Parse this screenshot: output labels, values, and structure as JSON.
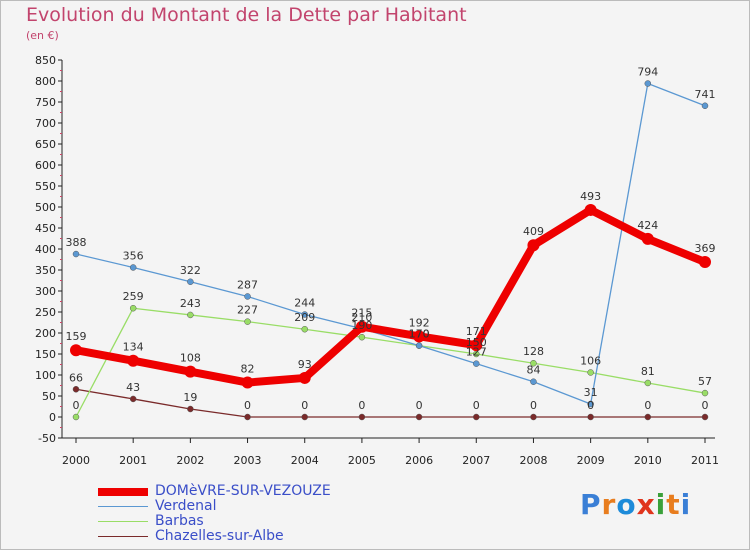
{
  "header": {
    "title": "Evolution du Montant de la Dette par Habitant",
    "subtitle": "(en €)"
  },
  "brand": {
    "text": "Proxiti",
    "colors": [
      "#3a7fd6",
      "#e87d1e",
      "#1d8bd9",
      "#e0341c",
      "#3aa03a",
      "#e87d1e",
      "#3a7fd6"
    ]
  },
  "chart_data": {
    "type": "line",
    "title": "Evolution du Montant de la Dette par Habitant",
    "subtitle": "(en €)",
    "xlabel": "",
    "ylabel": "",
    "x": [
      "2000",
      "2001",
      "2002",
      "2003",
      "2004",
      "2005",
      "2006",
      "2007",
      "2008",
      "2009",
      "2010",
      "2011"
    ],
    "ylim": [
      -50,
      850
    ],
    "yticks": [
      -50,
      0,
      50,
      100,
      150,
      200,
      250,
      300,
      350,
      400,
      450,
      500,
      550,
      600,
      650,
      700,
      750,
      800,
      850
    ],
    "grid": false,
    "legend": "bottom-left",
    "series": [
      {
        "name": "DOMèVRE-SUR-VEZOUZE",
        "color": "#ee0000",
        "values": [
          159,
          134,
          108,
          82,
          93,
          215,
          192,
          171,
          409,
          493,
          424,
          369
        ],
        "labels": [
          "159",
          "134",
          "108",
          "82",
          "93",
          "215",
          "192",
          "171",
          "409",
          "493",
          "424",
          "369"
        ]
      },
      {
        "name": "Verdenal",
        "color": "#5b98d2",
        "values": [
          388,
          356,
          322,
          287,
          244,
          210,
          170,
          127,
          84,
          31,
          794,
          741
        ],
        "labels": [
          "388",
          "356",
          "322",
          "287",
          "244",
          "210",
          "170",
          "127",
          "84",
          "31",
          "794",
          "741"
        ]
      },
      {
        "name": "Barbas",
        "color": "#99dd66",
        "values": [
          0,
          259,
          243,
          227,
          209,
          190,
          170,
          150,
          128,
          106,
          81,
          57
        ],
        "labels": [
          "0",
          "259",
          "243",
          "227",
          "209",
          "190",
          "170",
          "150",
          "128",
          "106",
          "81",
          "57"
        ]
      },
      {
        "name": "Chazelles-sur-Albe",
        "color": "#7a2a2a",
        "values": [
          66,
          43,
          19,
          0,
          0,
          0,
          0,
          0,
          0,
          0,
          0,
          0
        ],
        "labels": [
          "66",
          "43",
          "19",
          "0",
          "0",
          "0",
          "0",
          "0",
          "0",
          "0",
          "0",
          "0"
        ]
      }
    ]
  }
}
